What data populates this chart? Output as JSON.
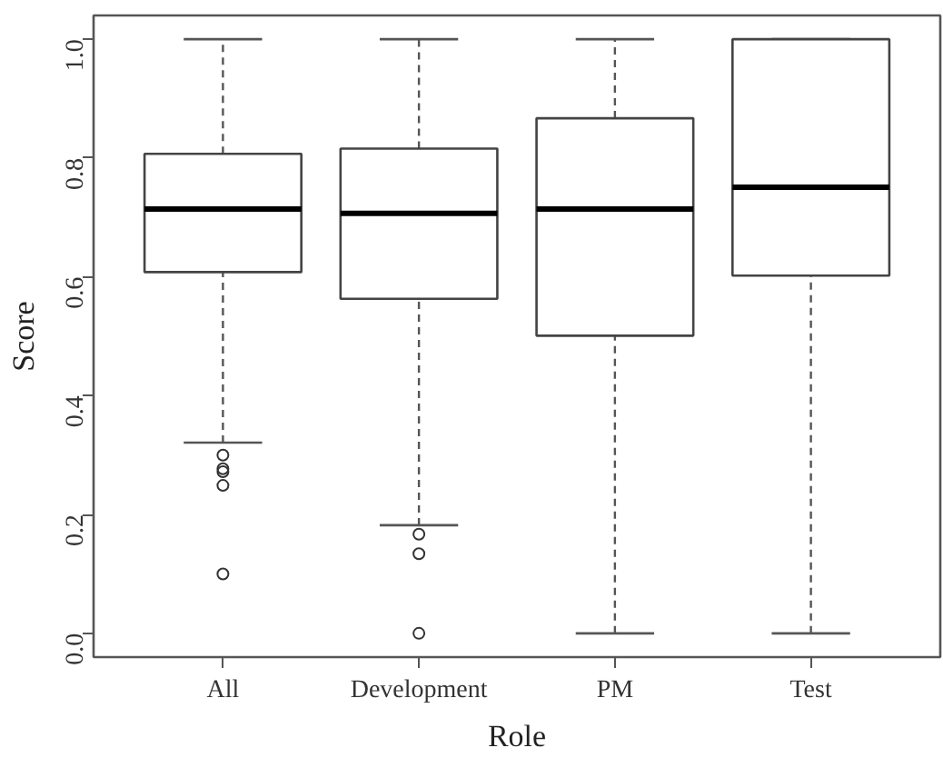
{
  "chart_data": {
    "type": "box",
    "xlabel": "Role",
    "ylabel": "Score",
    "categories": [
      "All",
      "Development",
      "PM",
      "Test"
    ],
    "boxes": [
      {
        "low": 0.321,
        "q1": 0.608,
        "median": 0.714,
        "q3": 0.807,
        "high": 1.0,
        "outliers": [
          0.3,
          0.277,
          0.272,
          0.249,
          0.1
        ]
      },
      {
        "low": 0.182,
        "q1": 0.563,
        "median": 0.707,
        "q3": 0.816,
        "high": 1.0,
        "outliers": [
          0.167,
          0.134,
          0.0
        ]
      },
      {
        "low": 0.0,
        "q1": 0.501,
        "median": 0.714,
        "q3": 0.867,
        "high": 1.0
      },
      {
        "low": 0.0,
        "q1": 0.602,
        "median": 0.751,
        "q3": 1.0,
        "high": 1.0
      }
    ],
    "ylim": [
      -0.04,
      1.04
    ],
    "yticks": [
      {
        "value": 0,
        "label": "0.0"
      },
      0.2,
      0.4,
      0.6,
      0.8,
      {
        "value": 1,
        "label": "1.0"
      }
    ],
    "grid": false
  }
}
